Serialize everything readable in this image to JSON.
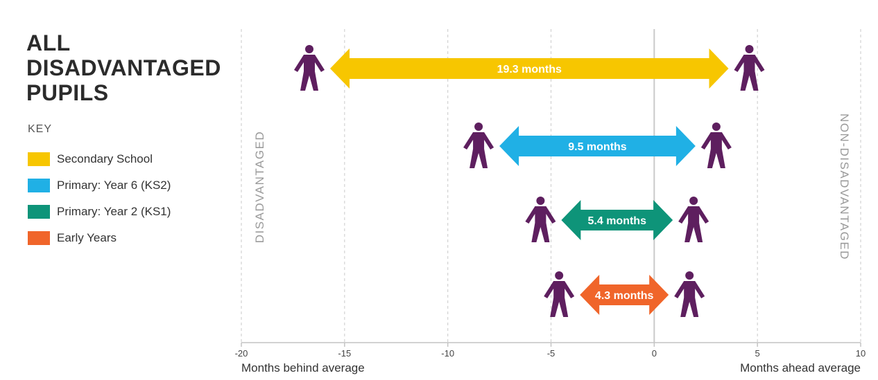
{
  "title_lines": [
    "ALL",
    "DISADVANTAGED",
    "PUPILS"
  ],
  "key_heading": "KEY",
  "legend": [
    {
      "label": "Secondary School",
      "color": "#F7C600"
    },
    {
      "label": "Primary: Year 6 (KS2)",
      "color": "#20B0E5"
    },
    {
      "label": "Primary: Year 2 (KS1)",
      "color": "#0E9479"
    },
    {
      "label": "Early Years",
      "color": "#F0652A"
    }
  ],
  "figure_color": "#5E1F5F",
  "chart_data": {
    "type": "range-arrow",
    "xlim": [
      -20,
      10
    ],
    "xticks": [
      -20,
      -15,
      -10,
      -5,
      0,
      5,
      10
    ],
    "xlabel_left": "Months behind average",
    "xlabel_right": "Months ahead average",
    "side_label_left": "DISADVANTAGED",
    "side_label_right": "NON-DISADVANTAGED",
    "grid": "dashed vertical",
    "series": [
      {
        "name": "Secondary School",
        "start": -15.7,
        "end": 3.6,
        "label": "19.3 months",
        "color": "#F7C600"
      },
      {
        "name": "Primary: Year 6 (KS2)",
        "start": -7.5,
        "end": 2.0,
        "label": "9.5 months",
        "color": "#20B0E5"
      },
      {
        "name": "Primary: Year 2 (KS1)",
        "start": -4.5,
        "end": 0.9,
        "label": "5.4 months",
        "color": "#0E9479"
      },
      {
        "name": "Early Years",
        "start": -3.6,
        "end": 0.7,
        "label": "4.3 months",
        "color": "#F0652A"
      }
    ]
  }
}
